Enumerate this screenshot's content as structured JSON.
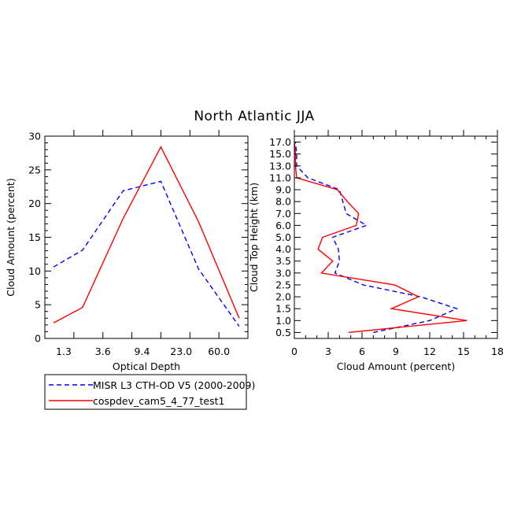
{
  "figure": {
    "title": "North Atlantic JJA"
  },
  "legend": {
    "entries": [
      {
        "label": "MISR L3 CTH-OD V5 (2000-2009)",
        "color": "#0000ff",
        "style": "dashed"
      },
      {
        "label": "cospdev_cam5_4_77_test1",
        "color": "#ff0000",
        "style": "solid"
      }
    ]
  },
  "chart_data": [
    {
      "type": "line",
      "xlabel": "Optical Depth",
      "ylabel": "Cloud Amount (percent)",
      "x_categories": [
        "1.3",
        "3.6",
        "9.4",
        "23.0",
        "60.0"
      ],
      "ylim": [
        0,
        30
      ],
      "yticks": [
        "0",
        "5",
        "10",
        "15",
        "20",
        "25",
        "30"
      ],
      "series": [
        {
          "name": "MISR L3 CTH-OD V5 (2000-2009)",
          "color": "#0000ff",
          "style": "dashed",
          "x": [
            0.3,
            1.3,
            2.7,
            4.0,
            5.3,
            6.7
          ],
          "y": [
            10.6,
            13.1,
            21.9,
            23.3,
            10.3,
            1.8
          ]
        },
        {
          "name": "cospdev_cam5_4_77_test1",
          "color": "#ff0000",
          "style": "solid",
          "x": [
            0.3,
            1.3,
            2.7,
            4.0,
            5.3,
            6.7
          ],
          "y": [
            2.3,
            4.6,
            17.8,
            28.4,
            17.3,
            3.0
          ]
        }
      ]
    },
    {
      "type": "line",
      "xlabel": "Cloud Amount (percent)",
      "ylabel": "Cloud Top Height (km)",
      "xlim": [
        0,
        18
      ],
      "xticks": [
        "0",
        "3",
        "6",
        "9",
        "12",
        "15",
        "18"
      ],
      "y_categories": [
        "0.5",
        "1.0",
        "1.5",
        "2.0",
        "2.5",
        "3.0",
        "3.5",
        "4.0",
        "5.0",
        "6.0",
        "7.0",
        "8.0",
        "9.0",
        "11.0",
        "13.0",
        "15.0",
        "17.0"
      ],
      "series": [
        {
          "name": "MISR L3 CTH-OD V5 (2000-2009)",
          "color": "#0000ff",
          "style": "dashed",
          "x": [
            7.0,
            12.0,
            14.4,
            11.2,
            6.1,
            3.6,
            4.0,
            3.9,
            3.4,
            6.4,
            4.6,
            4.3,
            4.0,
            1.2,
            0.2,
            0.2,
            0.1
          ],
          "y": [
            0.5,
            1.0,
            1.5,
            2.0,
            2.5,
            3.0,
            3.5,
            4.0,
            5.0,
            6.0,
            7.0,
            8.0,
            9.0,
            11.0,
            13.0,
            15.0,
            17.0
          ]
        },
        {
          "name": "cospdev_cam5_4_77_test1",
          "color": "#ff0000",
          "style": "solid",
          "x": [
            4.8,
            15.3,
            8.6,
            11.0,
            8.9,
            2.4,
            3.4,
            2.1,
            2.5,
            5.5,
            5.7,
            4.7,
            3.8,
            0.2,
            0.1,
            0.1,
            0.0
          ],
          "y": [
            0.5,
            1.0,
            1.5,
            2.0,
            2.5,
            3.0,
            3.5,
            4.0,
            5.0,
            6.0,
            7.0,
            8.0,
            9.0,
            11.0,
            13.0,
            15.0,
            17.0
          ]
        }
      ]
    }
  ]
}
